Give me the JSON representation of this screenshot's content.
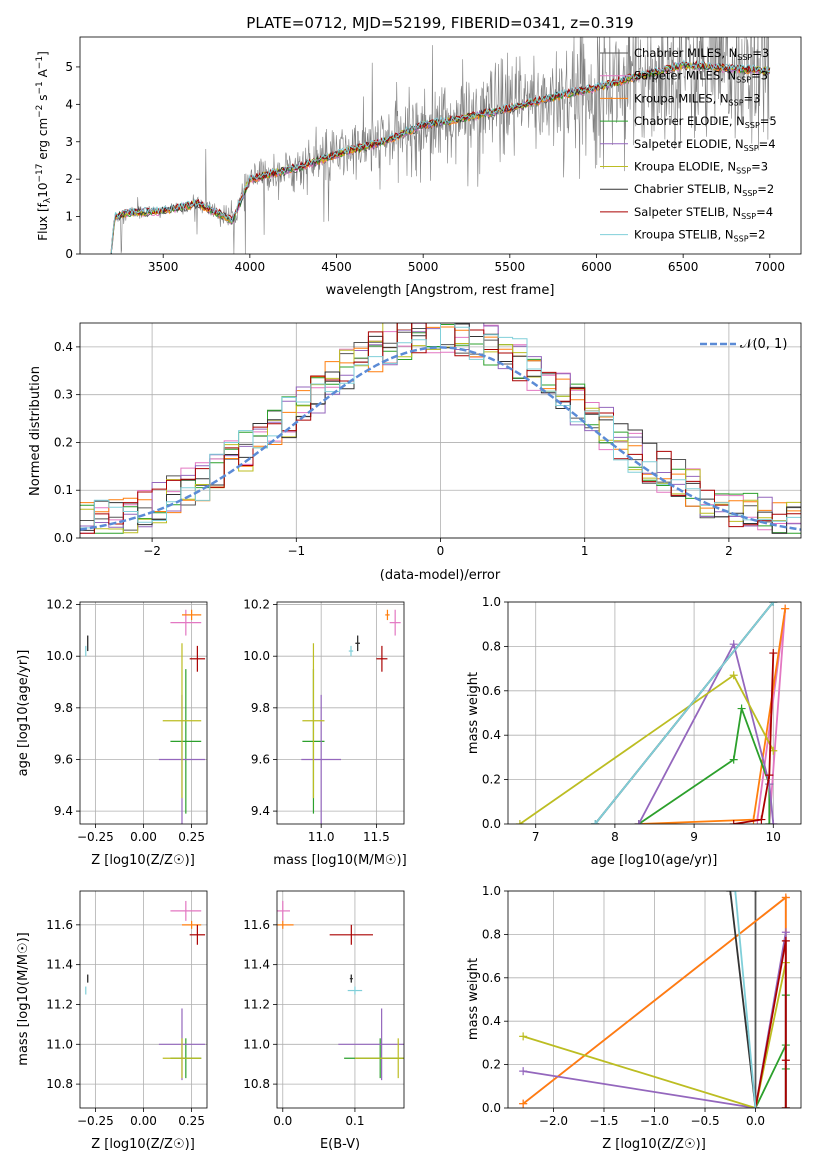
{
  "figure": {
    "title": "PLATE=0712, MJD=52199, FIBERID=0341, z=0.319"
  },
  "colors": {
    "observed": "#7f7f7f",
    "Chabrier MILES": "#555555",
    "Salpeter MILES": "#e377c2",
    "Kroupa MILES": "#ff7f0e",
    "Chabrier ELODIE": "#2ca02c",
    "Salpeter ELODIE": "#9467bd",
    "Kroupa ELODIE": "#bcbd22",
    "Chabrier STELIB": "#333333",
    "Salpeter STELIB": "#aa0000",
    "Kroupa STELIB": "#80cfd9",
    "normal_curve": "#5b8bd6"
  },
  "chart_data": [
    {
      "id": "spectrum",
      "type": "line",
      "title": "PLATE=0712, MJD=52199, FIBERID=0341, z=0.319",
      "xlabel": "wavelength [Angstrom, rest frame]",
      "ylabel": "Flux [f_λ 10^-17 erg cm^-2 s^-1 A^-1]",
      "xlim": [
        3020,
        7180
      ],
      "ylim": [
        0,
        5.8
      ],
      "xticks": [
        3500,
        4000,
        4500,
        5000,
        5500,
        6000,
        6500,
        7000
      ],
      "yticks": [
        0,
        1,
        2,
        3,
        4,
        5
      ],
      "grid": false,
      "legend_position": "right",
      "observed_range": [
        3200,
        7000
      ],
      "model_shape": [
        [
          3200,
          0.0
        ],
        [
          3220,
          1.0
        ],
        [
          3300,
          1.1
        ],
        [
          3500,
          1.15
        ],
        [
          3700,
          1.35
        ],
        [
          3900,
          0.9
        ],
        [
          4000,
          2.0
        ],
        [
          4300,
          2.35
        ],
        [
          4500,
          2.65
        ],
        [
          4800,
          3.05
        ],
        [
          5000,
          3.45
        ],
        [
          5200,
          3.6
        ],
        [
          5500,
          3.9
        ],
        [
          5800,
          4.25
        ],
        [
          6000,
          4.45
        ],
        [
          6200,
          4.7
        ],
        [
          6500,
          5.05
        ],
        [
          6800,
          4.95
        ],
        [
          7000,
          4.9
        ]
      ],
      "series": [
        {
          "name": "Chabrier MILES, N_SSP=3"
        },
        {
          "name": "Salpeter MILES, N_SSP=3"
        },
        {
          "name": "Kroupa MILES, N_SSP=3"
        },
        {
          "name": "Chabrier ELODIE, N_SSP=5"
        },
        {
          "name": "Salpeter ELODIE, N_SSP=4"
        },
        {
          "name": "Kroupa ELODIE, N_SSP=3"
        },
        {
          "name": "Chabrier STELIB, N_SSP=2"
        },
        {
          "name": "Salpeter STELIB, N_SSP=4"
        },
        {
          "name": "Kroupa STELIB, N_SSP=2"
        }
      ],
      "legend": [
        {
          "label": "Chabrier MILES, N",
          "sub": "SSP",
          "suffix": "=3"
        },
        {
          "label": "Salpeter MILES, N",
          "sub": "SSP",
          "suffix": "=3"
        },
        {
          "label": "Kroupa MILES, N",
          "sub": "SSP",
          "suffix": "=3"
        },
        {
          "label": "Chabrier ELODIE, N",
          "sub": "SSP",
          "suffix": "=5"
        },
        {
          "label": "Salpeter ELODIE, N",
          "sub": "SSP",
          "suffix": "=4"
        },
        {
          "label": "Kroupa ELODIE, N",
          "sub": "SSP",
          "suffix": "=3"
        },
        {
          "label": "Chabrier STELIB, N",
          "sub": "SSP",
          "suffix": "=2"
        },
        {
          "label": "Salpeter STELIB, N",
          "sub": "SSP",
          "suffix": "=4"
        },
        {
          "label": "Kroupa STELIB, N",
          "sub": "SSP",
          "suffix": "=2"
        }
      ]
    },
    {
      "id": "residuals",
      "type": "line",
      "xlabel": "(data-model)/error",
      "ylabel": "Normed distribution",
      "xlim": [
        -2.5,
        2.5
      ],
      "ylim": [
        0,
        0.45
      ],
      "xticks": [
        -2,
        -1,
        0,
        1,
        2
      ],
      "yticks": [
        0.0,
        0.1,
        0.2,
        0.3,
        0.4
      ],
      "grid": true,
      "legend_position": "top-right",
      "legend_label": "𝒩(0, 1)",
      "bin_width": 0.1
    },
    {
      "id": "age_vs_Z",
      "type": "scatter",
      "xlabel": "Z [log10(Z/Z☉)]",
      "ylabel": "age [log10(age/yr)]",
      "xlim": [
        -0.33,
        0.33
      ],
      "ylim": [
        9.35,
        10.21
      ],
      "xticks": [
        -0.25,
        0.0,
        0.25
      ],
      "yticks": [
        9.4,
        9.6,
        9.8,
        10.0,
        10.2
      ],
      "grid": true
    },
    {
      "id": "age_vs_mass",
      "type": "scatter",
      "xlabel": "mass [log10(M/M☉)]",
      "xlim": [
        10.6,
        11.75
      ],
      "ylim": [
        9.35,
        10.21
      ],
      "xticks": [
        11.0,
        11.5
      ],
      "yticks": [
        9.4,
        9.6,
        9.8,
        10.0,
        10.2
      ],
      "grid": true
    },
    {
      "id": "weight_vs_age",
      "type": "line",
      "xlabel": "age [log10(age/yr)]",
      "ylabel": "mass weight",
      "xlim": [
        6.65,
        10.35
      ],
      "ylim": [
        0,
        1
      ],
      "xticks": [
        7,
        8,
        9,
        10
      ],
      "yticks": [
        0.0,
        0.2,
        0.4,
        0.6,
        0.8,
        1.0
      ],
      "grid": true
    },
    {
      "id": "mass_vs_Z",
      "type": "scatter",
      "xlabel": "Z [log10(Z/Z☉)]",
      "ylabel": "mass [log10(M/M☉)]",
      "xlim": [
        -0.33,
        0.33
      ],
      "ylim": [
        10.68,
        11.77
      ],
      "xticks": [
        -0.25,
        0.0,
        0.25
      ],
      "yticks": [
        10.8,
        11.0,
        11.2,
        11.4,
        11.6
      ],
      "grid": true
    },
    {
      "id": "mass_vs_ebv",
      "type": "scatter",
      "xlabel": "E(B-V)",
      "xlim": [
        -0.008,
        0.168
      ],
      "ylim": [
        10.68,
        11.77
      ],
      "xticks": [
        0.0,
        0.1
      ],
      "yticks": [
        10.8,
        11.0,
        11.2,
        11.4,
        11.6
      ],
      "grid": true
    },
    {
      "id": "weight_vs_Z",
      "type": "line",
      "xlabel": "Z [log10(Z/Z☉)]",
      "ylabel": "mass weight",
      "xlim": [
        -2.45,
        0.45
      ],
      "ylim": [
        0,
        1
      ],
      "xticks": [
        -2.0,
        -1.5,
        -1.0,
        -0.5,
        0.0
      ],
      "yticks": [
        0.0,
        0.2,
        0.4,
        0.6,
        0.8,
        1.0
      ],
      "grid": true
    }
  ],
  "fits": [
    {
      "model": "Chabrier MILES",
      "Z": -0.29,
      "Z_err": 0.0,
      "age": 10.05,
      "age_err": 0.03,
      "mass": 11.33,
      "mass_err": 0.02,
      "ebv": 0.095,
      "ebv_err": 0.002,
      "sfh_age": [
        7.75,
        10.0
      ],
      "sfh_w": [
        0.0,
        1.0
      ],
      "sfh_Z": [
        0.0,
        0.0
      ],
      "sfh_Zw": [
        0.0,
        1.0
      ]
    },
    {
      "model": "Salpeter MILES",
      "Z": 0.22,
      "Z_err": 0.08,
      "age": 10.13,
      "age_err": 0.05,
      "mass": 11.67,
      "mass_err": 0.05,
      "ebv": 0.0,
      "ebv_err": 0.01,
      "sfh_age": [
        9.95,
        10.15,
        9.8
      ],
      "sfh_w": [
        0.0,
        0.97,
        0.02
      ],
      "sfh_Z": [
        0.3,
        0.3,
        -2.3
      ],
      "sfh_Zw": [
        0.0,
        0.97,
        0.02
      ]
    },
    {
      "model": "Kroupa MILES",
      "Z": 0.25,
      "Z_err": 0.05,
      "age": 10.16,
      "age_err": 0.02,
      "mass": 11.6,
      "mass_err": 0.02,
      "ebv": 0.0,
      "ebv_err": 0.015,
      "sfh_age": [
        8.3,
        9.75,
        10.15
      ],
      "sfh_w": [
        0.0,
        0.02,
        0.97
      ],
      "sfh_Z": [
        -2.3,
        0.3,
        0.3
      ],
      "sfh_Zw": [
        0.02,
        0.97,
        0.0
      ]
    },
    {
      "model": "Chabrier ELODIE",
      "Z": 0.22,
      "Z_err": 0.08,
      "age": 9.67,
      "age_err": 0.28,
      "mass": 10.93,
      "mass_err": 0.1,
      "ebv": 0.135,
      "ebv_err": 0.05,
      "sfh_age": [
        8.3,
        9.5,
        9.6,
        9.95,
        9.95
      ],
      "sfh_w": [
        0.0,
        0.29,
        0.52,
        0.18,
        0.0
      ],
      "sfh_Z": [
        0.0,
        0.3,
        0.3,
        0.3,
        0.3
      ],
      "sfh_Zw": [
        0.0,
        0.29,
        0.52,
        0.18,
        0.0
      ]
    },
    {
      "model": "Salpeter ELODIE",
      "Z": 0.2,
      "Z_err": 0.12,
      "age": 9.6,
      "age_err": 0.25,
      "mass": 11.0,
      "mass_err": 0.18,
      "ebv": 0.137,
      "ebv_err": 0.06,
      "sfh_age": [
        8.3,
        9.5,
        9.95,
        10.0
      ],
      "sfh_w": [
        0.0,
        0.81,
        0.18,
        0.0
      ],
      "sfh_Z": [
        -2.3,
        0.0,
        0.3,
        0.3
      ],
      "sfh_Zw": [
        0.17,
        0.0,
        0.81,
        0.0
      ]
    },
    {
      "model": "Kroupa ELODIE",
      "Z": 0.2,
      "Z_err": 0.1,
      "age": 9.75,
      "age_err": 0.3,
      "mass": 10.93,
      "mass_err": 0.1,
      "ebv": 0.16,
      "ebv_err": 0.06,
      "sfh_age": [
        6.8,
        9.5,
        10.0
      ],
      "sfh_w": [
        0.0,
        0.67,
        0.33
      ],
      "sfh_Z": [
        -2.3,
        0.0,
        0.3
      ],
      "sfh_Zw": [
        0.33,
        0.0,
        0.67
      ]
    },
    {
      "model": "Chabrier STELIB",
      "Z": -0.29,
      "Z_err": 0.0,
      "age": 10.05,
      "age_err": 0.03,
      "mass": 11.33,
      "mass_err": 0.02,
      "ebv": 0.095,
      "ebv_err": 0.002,
      "sfh_age": [
        7.75,
        10.0
      ],
      "sfh_w": [
        0.0,
        1.0
      ],
      "sfh_Z": [
        -0.25,
        0.0
      ],
      "sfh_Zw": [
        1.0,
        0.0
      ]
    },
    {
      "model": "Salpeter STELIB",
      "Z": 0.28,
      "Z_err": 0.04,
      "age": 9.99,
      "age_err": 0.05,
      "mass": 11.55,
      "mass_err": 0.05,
      "ebv": 0.095,
      "ebv_err": 0.03,
      "sfh_age": [
        9.5,
        9.85,
        9.95,
        10.0
      ],
      "sfh_w": [
        0.0,
        0.02,
        0.22,
        0.77
      ],
      "sfh_Z": [
        0.0,
        0.3,
        0.3,
        0.3
      ],
      "sfh_Zw": [
        0.0,
        0.77,
        0.22,
        0.0
      ]
    },
    {
      "model": "Kroupa STELIB",
      "Z": -0.3,
      "Z_err": 0.0,
      "age": 10.02,
      "age_err": 0.02,
      "mass": 11.27,
      "mass_err": 0.02,
      "ebv": 0.1,
      "ebv_err": 0.01,
      "sfh_age": [
        7.75,
        10.0
      ],
      "sfh_w": [
        0.0,
        1.0
      ],
      "sfh_Z": [
        -0.2,
        0.0
      ],
      "sfh_Zw": [
        1.0,
        0.0
      ]
    }
  ]
}
